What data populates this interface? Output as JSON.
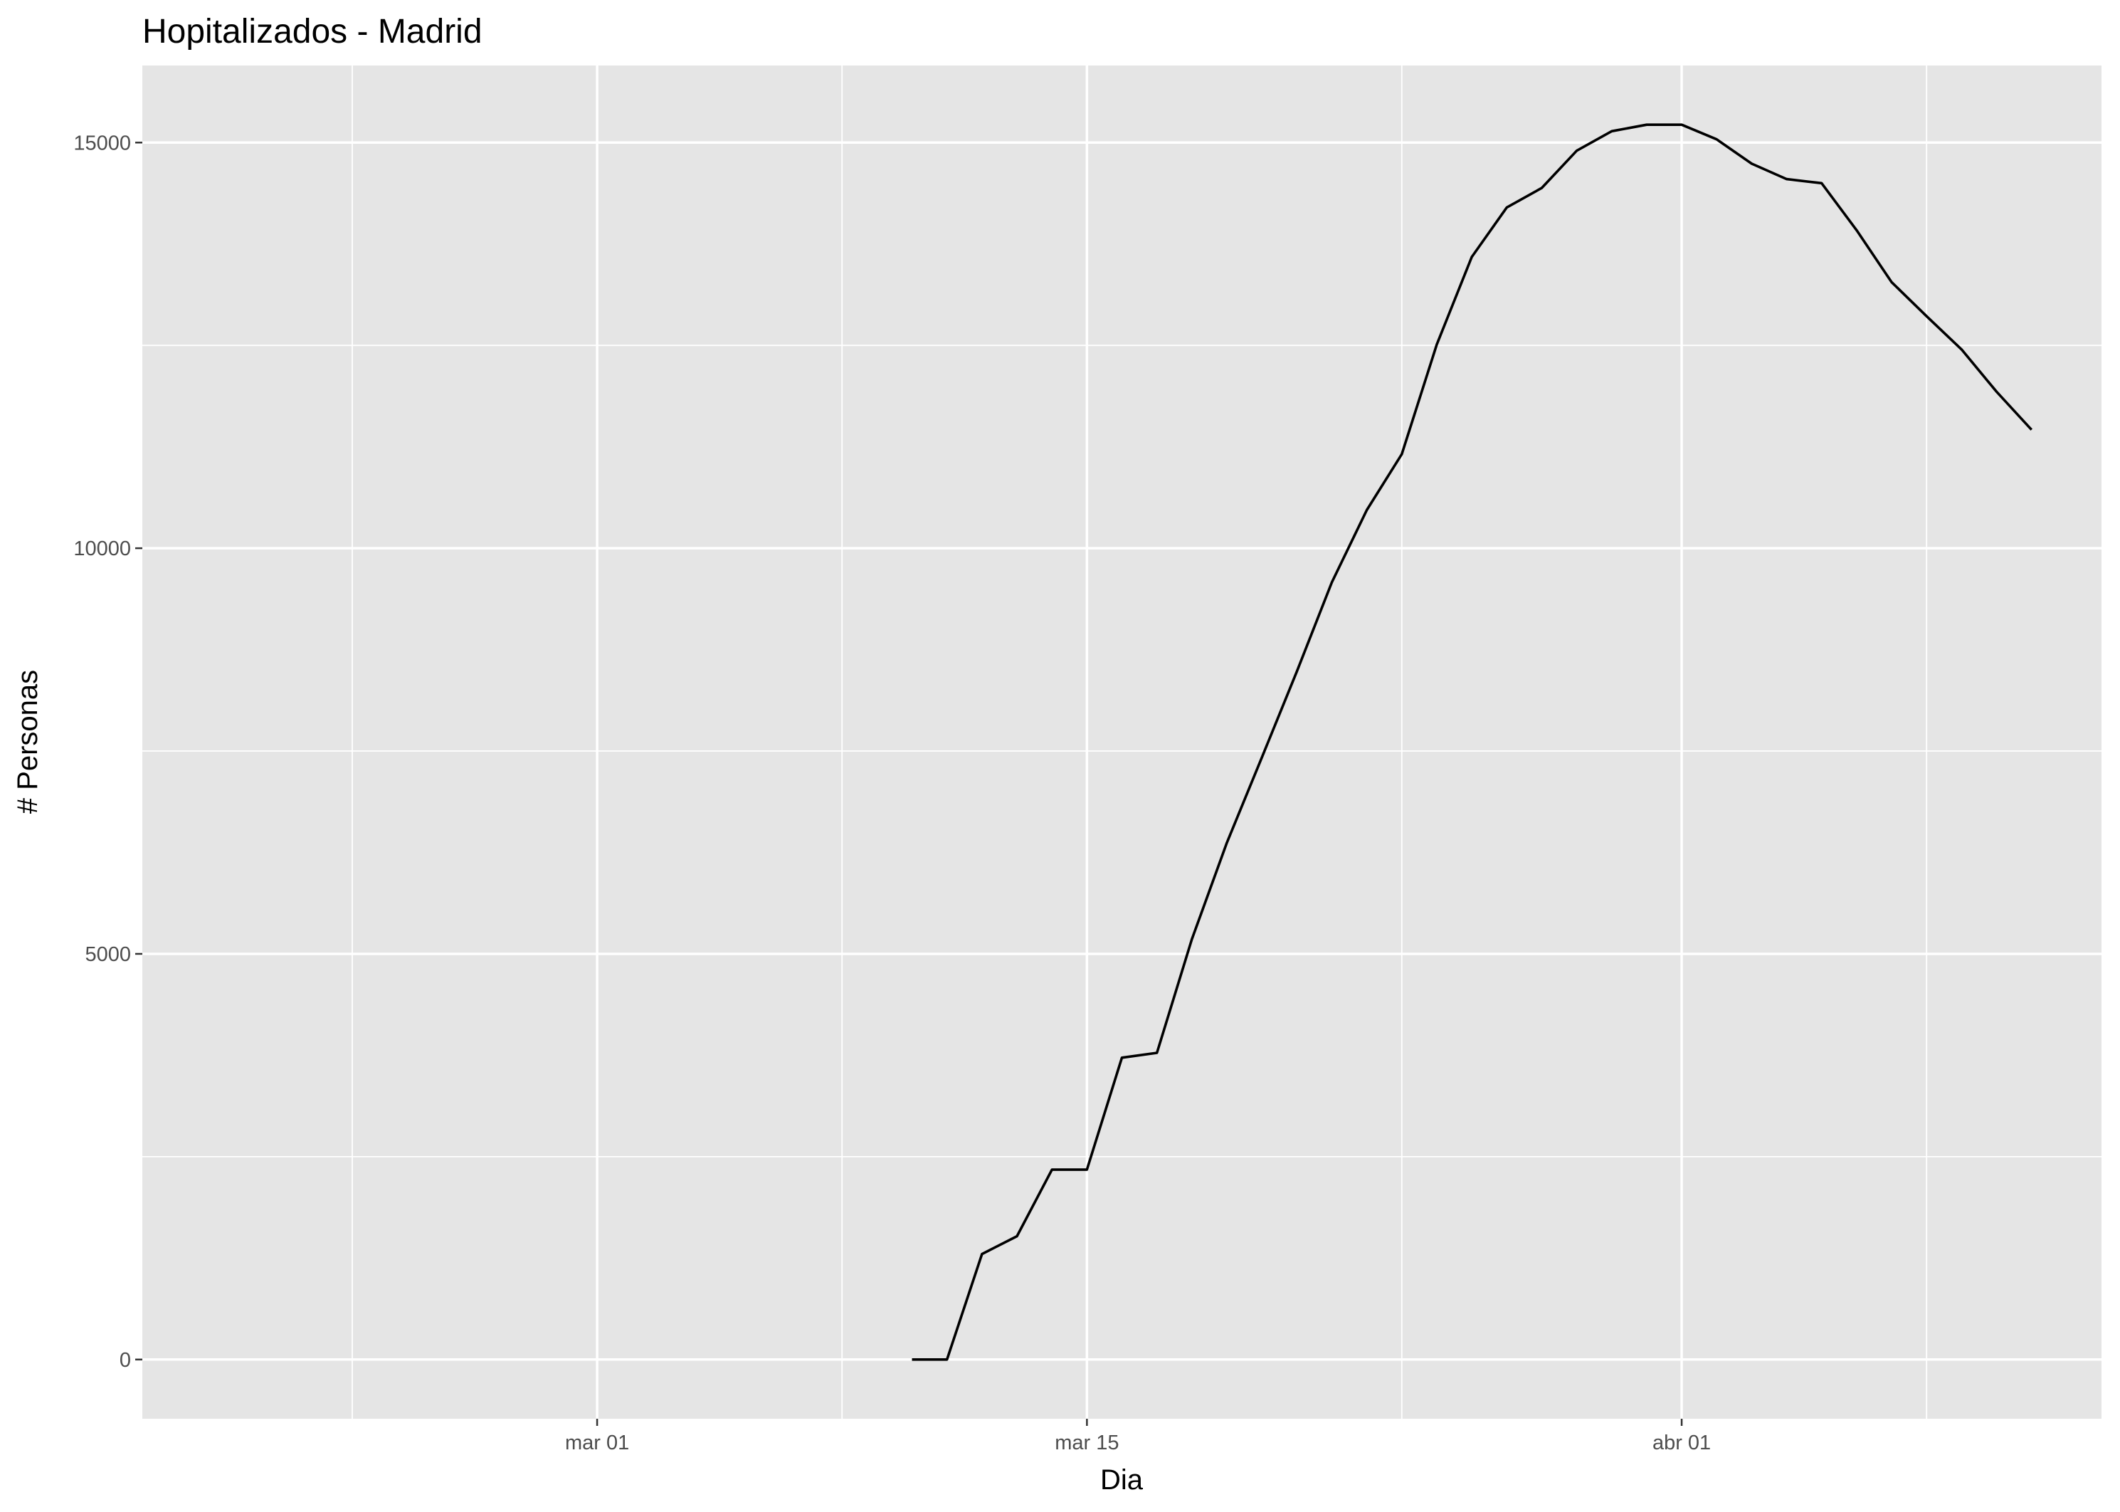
{
  "chart_data": {
    "type": "line",
    "title": "Hopitalizados - Madrid",
    "xlabel": "Dia",
    "ylabel": "# Personas",
    "x_ticks": [
      {
        "date": "2020-03-01",
        "label": "mar 01"
      },
      {
        "date": "2020-03-15",
        "label": "mar 15"
      },
      {
        "date": "2020-04-01",
        "label": "abr 01"
      }
    ],
    "x_minor_breaks": [
      "2020-02-23",
      "2020-03-08",
      "2020-03-24",
      "2020-04-08"
    ],
    "y_ticks": [
      {
        "value": 0,
        "label": "0"
      },
      {
        "value": 5000,
        "label": "5000"
      },
      {
        "value": 10000,
        "label": "10000"
      },
      {
        "value": 15000,
        "label": "15000"
      }
    ],
    "y_minor_breaks": [
      2500,
      7500,
      12500
    ],
    "xlim": [
      "2020-02-17",
      "2020-04-13"
    ],
    "ylim": [
      -730,
      15950
    ],
    "grid": true,
    "legend": "none",
    "series": [
      {
        "color": "#000000",
        "x": [
          "2020-03-10",
          "2020-03-11",
          "2020-03-12",
          "2020-03-13",
          "2020-03-14",
          "2020-03-15",
          "2020-03-16",
          "2020-03-17",
          "2020-03-18",
          "2020-03-19",
          "2020-03-20",
          "2020-03-21",
          "2020-03-22",
          "2020-03-23",
          "2020-03-24",
          "2020-03-25",
          "2020-03-26",
          "2020-03-27",
          "2020-03-28",
          "2020-03-29",
          "2020-03-30",
          "2020-03-31",
          "2020-04-01",
          "2020-04-02",
          "2020-04-03",
          "2020-04-04",
          "2020-04-05",
          "2020-04-06",
          "2020-04-07",
          "2020-04-08",
          "2020-04-09",
          "2020-04-10",
          "2020-04-11"
        ],
        "y": [
          0,
          0,
          1300,
          1520,
          2340,
          2340,
          3720,
          3780,
          5180,
          6370,
          7420,
          8480,
          9580,
          10470,
          11160,
          12510,
          13590,
          14200,
          14440,
          14900,
          15140,
          15220,
          15220,
          15040,
          14740,
          14550,
          14500,
          13920,
          13280,
          12860,
          12450,
          11930,
          11460
        ]
      }
    ]
  }
}
